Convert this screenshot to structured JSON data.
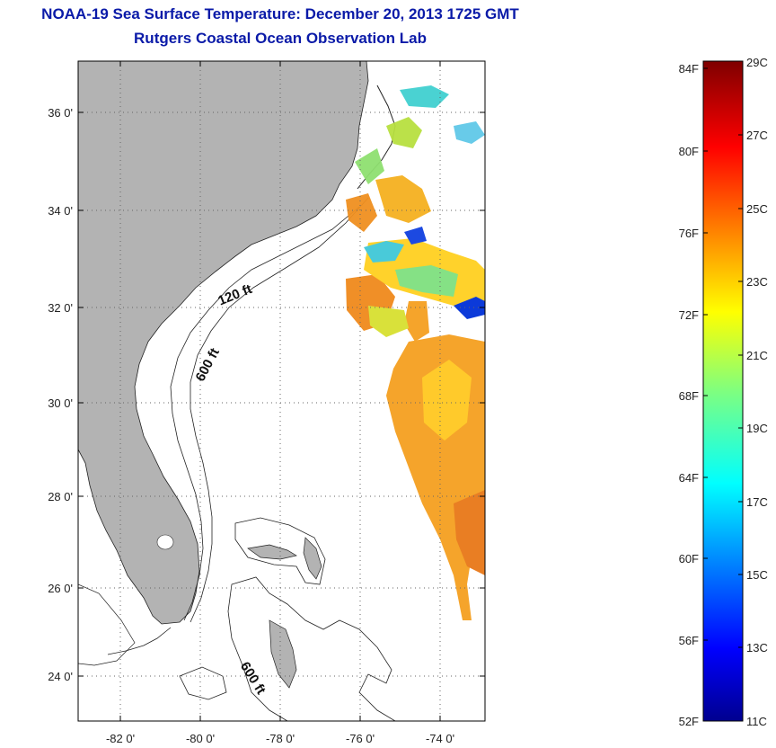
{
  "title": {
    "line1": "NOAA-19 Sea Surface Temperature:  December 20, 2013 1725 GMT",
    "line2": "Rutgers Coastal Ocean Observation Lab"
  },
  "map": {
    "lat_ticks": [
      {
        "value": 36,
        "label": "36 0'"
      },
      {
        "value": 34,
        "label": "34 0'"
      },
      {
        "value": 32,
        "label": "32 0'"
      },
      {
        "value": 30,
        "label": "30 0'"
      },
      {
        "value": 28,
        "label": "28 0'"
      },
      {
        "value": 26,
        "label": "26 0'"
      },
      {
        "value": 24,
        "label": "24 0'"
      }
    ],
    "lon_ticks": [
      {
        "value": -82,
        "label": "-82 0'"
      },
      {
        "value": -80,
        "label": "-80 0'"
      },
      {
        "value": -78,
        "label": "-78 0'"
      },
      {
        "value": -76,
        "label": "-76 0'"
      },
      {
        "value": -74,
        "label": "-74 0'"
      }
    ],
    "contour_labels": [
      "120 ft",
      "600 ft",
      "600 ft"
    ],
    "land_color": "#b3b3b3",
    "grid": true
  },
  "colorbar": {
    "fahrenheit": [
      "84F",
      "80F",
      "76F",
      "72F",
      "68F",
      "64F",
      "60F",
      "56F",
      "52F"
    ],
    "celsius": [
      "29C",
      "27C",
      "25C",
      "23C",
      "21C",
      "19C",
      "17C",
      "15C",
      "13C",
      "11C"
    ],
    "colormap": "jet",
    "range_c": [
      11,
      29
    ]
  }
}
